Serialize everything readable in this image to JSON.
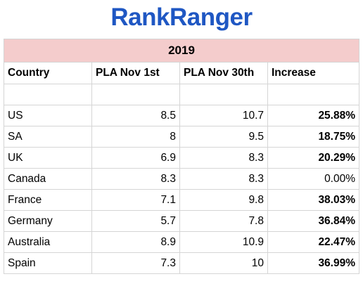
{
  "logo": {
    "text": "RankRanger",
    "color": "#1f57c3"
  },
  "table": {
    "year": "2019",
    "year_bg": "#f4cccc",
    "headers": [
      "Country",
      "PLA Nov 1st",
      "PLA Nov 30th",
      "Increase"
    ],
    "rows": [
      {
        "country": "US",
        "nov1": "8.5",
        "nov30": "10.7",
        "increase": "25.88%",
        "bold": true
      },
      {
        "country": "SA",
        "nov1": "8",
        "nov30": "9.5",
        "increase": "18.75%",
        "bold": true
      },
      {
        "country": "UK",
        "nov1": "6.9",
        "nov30": "8.3",
        "increase": "20.29%",
        "bold": true
      },
      {
        "country": "Canada",
        "nov1": "8.3",
        "nov30": "8.3",
        "increase": "0.00%",
        "bold": false
      },
      {
        "country": "France",
        "nov1": "7.1",
        "nov30": "9.8",
        "increase": "38.03%",
        "bold": true
      },
      {
        "country": "Germany",
        "nov1": "5.7",
        "nov30": "7.8",
        "increase": "36.84%",
        "bold": true
      },
      {
        "country": "Australia",
        "nov1": "8.9",
        "nov30": "10.9",
        "increase": "22.47%",
        "bold": true
      },
      {
        "country": "Spain",
        "nov1": "7.3",
        "nov30": "10",
        "increase": "36.99%",
        "bold": true
      }
    ]
  }
}
